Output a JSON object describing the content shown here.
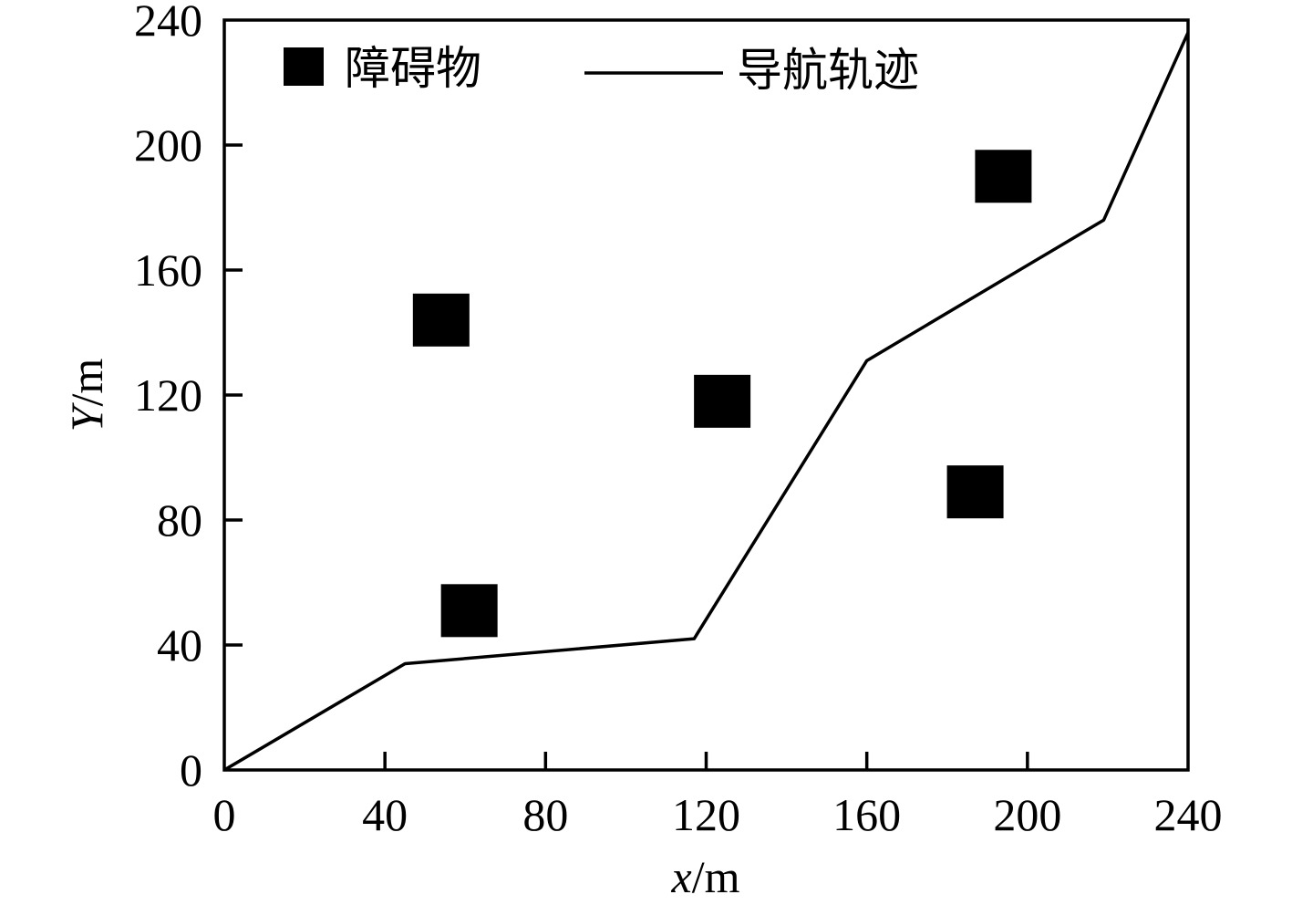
{
  "chart_data": {
    "type": "scatter",
    "xlabel": {
      "var": "x",
      "unit": "/m"
    },
    "ylabel": {
      "var": "Y",
      "unit": "/m"
    },
    "xlim": [
      0,
      240
    ],
    "ylim": [
      0,
      240
    ],
    "xticks": [
      0,
      40,
      80,
      120,
      160,
      200,
      240
    ],
    "yticks": [
      0,
      40,
      80,
      120,
      160,
      200,
      240
    ],
    "grid": false,
    "legend_position": "top",
    "series": [
      {
        "name": "障碍物",
        "kind": "scatter",
        "marker": "square",
        "color": "#000000",
        "points": [
          {
            "x": 54,
            "y": 144
          },
          {
            "x": 61,
            "y": 51
          },
          {
            "x": 124,
            "y": 118
          },
          {
            "x": 187,
            "y": 89
          },
          {
            "x": 194,
            "y": 190
          }
        ]
      },
      {
        "name": "导航轨迹",
        "kind": "line",
        "color": "#000000",
        "points": [
          {
            "x": 0,
            "y": 0
          },
          {
            "x": 45,
            "y": 34
          },
          {
            "x": 117,
            "y": 42
          },
          {
            "x": 160,
            "y": 131
          },
          {
            "x": 219,
            "y": 176
          },
          {
            "x": 240,
            "y": 236
          }
        ]
      }
    ]
  }
}
